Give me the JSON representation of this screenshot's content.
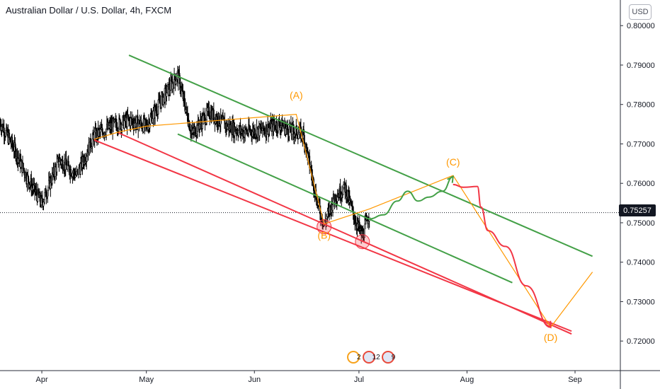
{
  "header": {
    "symbol_title": "Australian Dollar / U.S. Dollar, 4h, FXCM",
    "currency_button": "USD"
  },
  "price_tag": "0.75257",
  "events": {
    "count_a": "2",
    "count_b": "12",
    "count_c": "9"
  },
  "annotations": {
    "A": "(A)",
    "B": "(B)",
    "C": "(C)",
    "D": "(D)"
  },
  "colors": {
    "candle": "#000000",
    "green_line": "#43a047",
    "red_line": "#f23645",
    "orange_line": "#ff9800",
    "axis_text": "#131722",
    "last_price_line": "#131722"
  },
  "chart_data": {
    "type": "candlestick",
    "title": "Australian Dollar / U.S. Dollar, 4h, FXCM",
    "x_tick_labels": [
      "Apr",
      "May",
      "Jun",
      "Jul",
      "Aug",
      "Sep"
    ],
    "y_tick_labels": [
      "0.80000",
      "0.79000",
      "0.78000",
      "0.77000",
      "0.76000",
      "0.75000",
      "0.74000",
      "0.73000",
      "0.72000"
    ],
    "ylim": [
      0.7125,
      0.8065
    ],
    "last_price": 0.75257,
    "price_path": [
      [
        "2021-03-20",
        0.7755
      ],
      [
        "2021-03-24",
        0.769
      ],
      [
        "2021-03-28",
        0.761
      ],
      [
        "2021-04-01",
        0.755
      ],
      [
        "2021-04-06",
        0.766
      ],
      [
        "2021-04-11",
        0.762
      ],
      [
        "2021-04-16",
        0.772
      ],
      [
        "2021-04-21",
        0.7745
      ],
      [
        "2021-04-26",
        0.776
      ],
      [
        "2021-05-01",
        0.7745
      ],
      [
        "2021-05-06",
        0.782
      ],
      [
        "2021-05-10",
        0.7875
      ],
      [
        "2021-05-14",
        0.7725
      ],
      [
        "2021-05-19",
        0.778
      ],
      [
        "2021-05-24",
        0.7745
      ],
      [
        "2021-05-29",
        0.773
      ],
      [
        "2021-06-03",
        0.7735
      ],
      [
        "2021-06-08",
        0.775
      ],
      [
        "2021-06-11",
        0.7735
      ],
      [
        "2021-06-15",
        0.7725
      ],
      [
        "2021-06-17",
        0.764
      ],
      [
        "2021-06-19",
        0.7555
      ],
      [
        "2021-06-21",
        0.7495
      ],
      [
        "2021-06-24",
        0.7565
      ],
      [
        "2021-06-27",
        0.759
      ],
      [
        "2021-06-30",
        0.7505
      ],
      [
        "2021-07-02",
        0.7465
      ],
      [
        "2021-07-04",
        0.7526
      ]
    ],
    "trendlines": [
      {
        "color": "green",
        "points": [
          [
            "2021-04-26",
            0.7925
          ],
          [
            "2021-09-06",
            0.7415
          ]
        ]
      },
      {
        "color": "green",
        "points": [
          [
            "2021-05-10",
            0.7725
          ],
          [
            "2021-08-14",
            0.7348
          ]
        ]
      },
      {
        "color": "red",
        "points": [
          [
            "2021-04-16",
            0.771
          ],
          [
            "2021-08-31",
            0.7225
          ]
        ]
      },
      {
        "color": "red",
        "points": [
          [
            "2021-04-23",
            0.7728
          ],
          [
            "2021-08-31",
            0.7218
          ]
        ]
      }
    ],
    "wave_path": [
      [
        "2021-04-16",
        0.7712
      ],
      [
        "2021-04-23",
        0.773
      ],
      [
        "2021-05-01",
        0.7745
      ],
      [
        "2021-06-13",
        0.7775
      ],
      [
        "2021-06-21",
        0.7497
      ],
      [
        "2021-07-04",
        0.7535
      ],
      [
        "2021-07-28",
        0.762
      ],
      [
        "2021-08-25",
        0.7235
      ],
      [
        "2021-09-06",
        0.7375
      ]
    ],
    "projection": [
      [
        "2021-07-04",
        0.751
      ],
      [
        "2021-07-08",
        0.752
      ],
      [
        "2021-07-12",
        0.7555
      ],
      [
        "2021-07-15",
        0.758
      ],
      [
        "2021-07-18",
        0.7555
      ],
      [
        "2021-07-21",
        0.7565
      ],
      [
        "2021-07-25",
        0.758
      ],
      [
        "2021-07-28",
        0.7617
      ]
    ],
    "red_projection": [
      [
        "2021-07-28",
        0.7597
      ],
      [
        "2021-07-31",
        0.759
      ],
      [
        "2021-08-04",
        0.7592
      ],
      [
        "2021-08-05",
        0.754
      ],
      [
        "2021-08-07",
        0.748
      ],
      [
        "2021-08-12",
        0.744
      ],
      [
        "2021-08-18",
        0.734
      ],
      [
        "2021-08-25",
        0.7235
      ]
    ],
    "marked_lows": [
      [
        "2021-06-21",
        0.749
      ],
      [
        "2021-07-02",
        0.7452
      ]
    ],
    "labels": [
      {
        "text": "(A)",
        "at": [
          "2021-06-13",
          0.7815
        ]
      },
      {
        "text": "(B)",
        "at": [
          "2021-06-21",
          0.746
        ]
      },
      {
        "text": "(C)",
        "at": [
          "2021-07-28",
          0.7645
        ]
      },
      {
        "text": "(D)",
        "at": [
          "2021-08-25",
          0.72
        ]
      }
    ]
  }
}
